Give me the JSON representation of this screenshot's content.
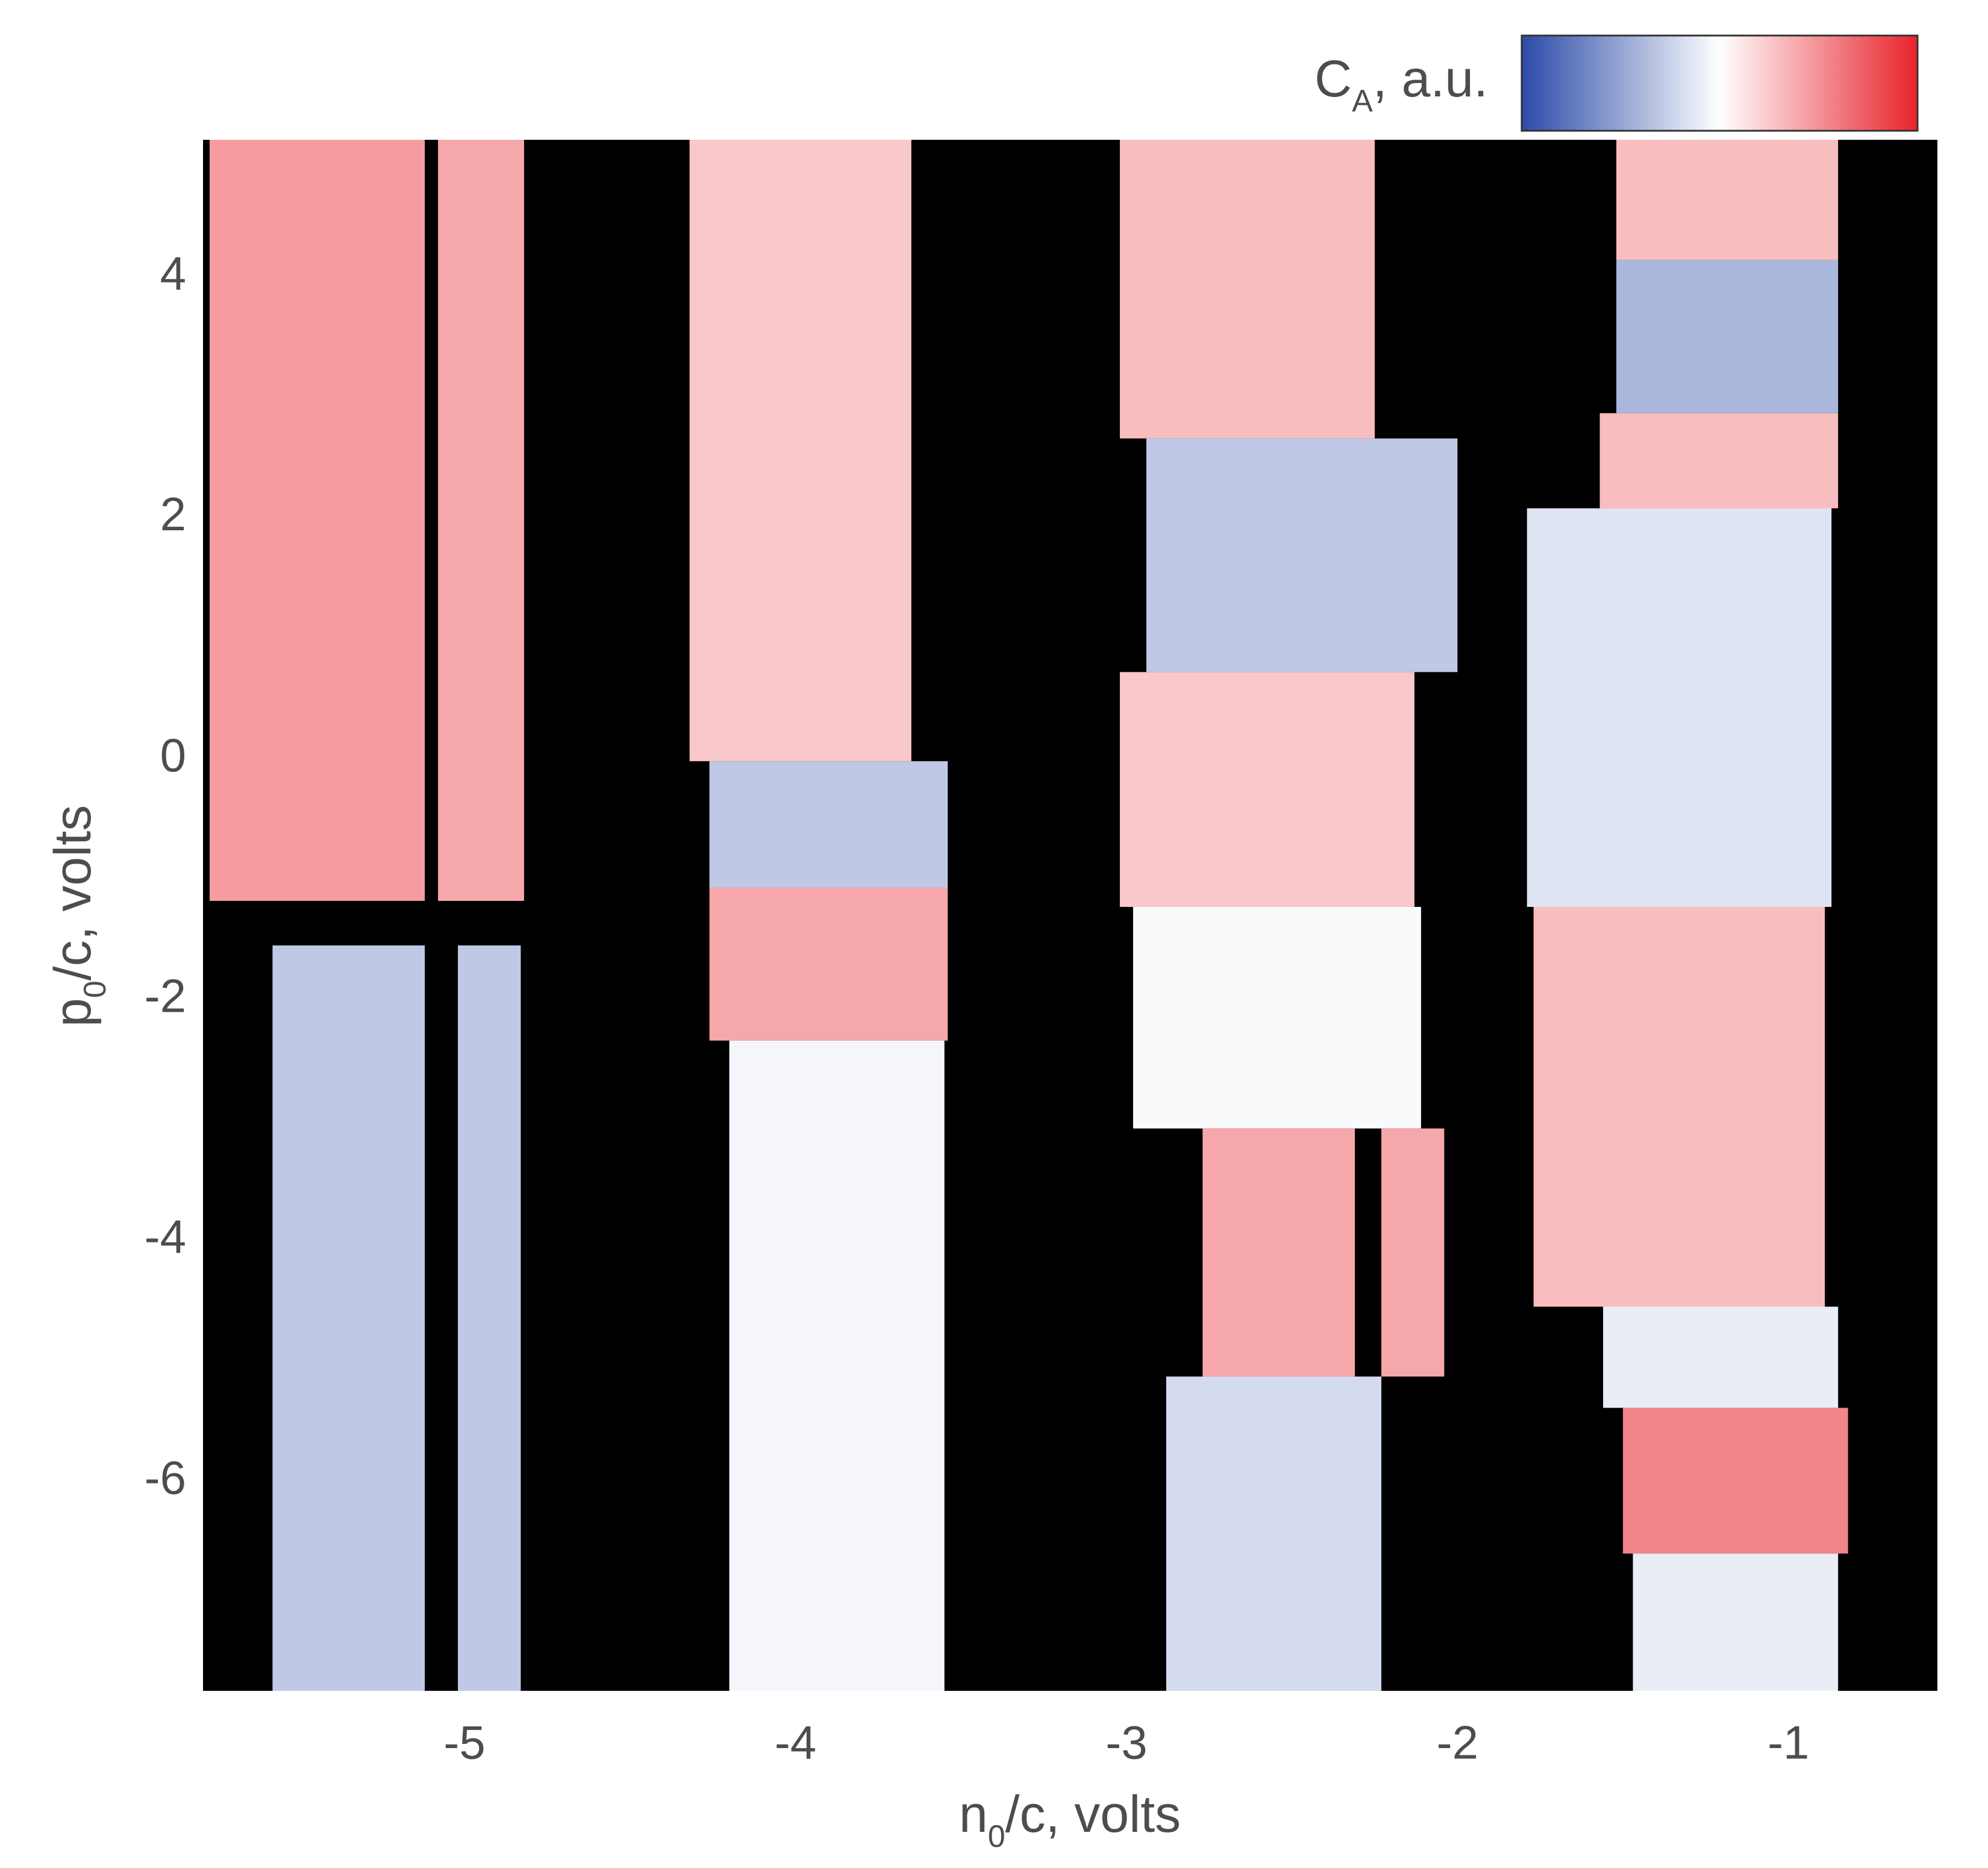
{
  "chart_data": {
    "type": "heatmap",
    "xlabel": [
      "n",
      "0",
      "/c, volts"
    ],
    "ylabel": [
      "p",
      "0",
      "/c, volts"
    ],
    "colorbar_label": [
      "C",
      "A",
      ", a.u."
    ],
    "xlim": [
      -5.79,
      -0.55
    ],
    "ylim": [
      -7.74,
      5.14
    ],
    "xticks": [
      -5,
      -4,
      -3,
      -2,
      -1
    ],
    "yticks": [
      4,
      2,
      0,
      -2,
      -4,
      -6
    ],
    "clim": [
      -1,
      1
    ],
    "colormap": [
      "#2b4ba8",
      "#ffffff",
      "#e8232b"
    ],
    "mask_color": "#000000",
    "regions": [
      {
        "x": [
          -5.77,
          -5.12
        ],
        "y": [
          -1.18,
          5.14
        ],
        "value": 0.45
      },
      {
        "x": [
          -5.58,
          -5.12
        ],
        "y": [
          -7.74,
          -1.55
        ],
        "value": -0.3
      },
      {
        "x": [
          -5.08,
          -4.82
        ],
        "y": [
          -1.18,
          5.14
        ],
        "value": 0.4
      },
      {
        "x": [
          -5.02,
          -4.83
        ],
        "y": [
          -7.74,
          -1.55
        ],
        "value": -0.3
      },
      {
        "x": [
          -4.32,
          -3.65
        ],
        "y": [
          -0.02,
          5.14
        ],
        "value": 0.25
      },
      {
        "x": [
          -4.26,
          -3.54
        ],
        "y": [
          -1.07,
          -0.02
        ],
        "value": -0.3
      },
      {
        "x": [
          -4.26,
          -3.54
        ],
        "y": [
          -2.34,
          -1.07
        ],
        "value": 0.4
      },
      {
        "x": [
          -4.2,
          -3.55
        ],
        "y": [
          -7.74,
          -2.34
        ],
        "value": -0.05
      },
      {
        "x": [
          -3.02,
          -2.25
        ],
        "y": [
          2.66,
          5.14
        ],
        "value": 0.3
      },
      {
        "x": [
          -2.94,
          -2.0
        ],
        "y": [
          0.72,
          2.66
        ],
        "value": -0.3
      },
      {
        "x": [
          -3.02,
          -2.13
        ],
        "y": [
          -1.23,
          0.72
        ],
        "value": 0.25
      },
      {
        "x": [
          -2.98,
          -2.11
        ],
        "y": [
          -3.07,
          -1.23
        ],
        "value": -0.03
      },
      {
        "x": [
          -2.77,
          -2.31
        ],
        "y": [
          -5.13,
          -3.07
        ],
        "value": 0.4
      },
      {
        "x": [
          -2.23,
          -2.04
        ],
        "y": [
          -5.13,
          -3.07
        ],
        "value": 0.4
      },
      {
        "x": [
          -2.88,
          -2.23
        ],
        "y": [
          -7.74,
          -5.13
        ],
        "value": -0.2
      },
      {
        "x": [
          -1.52,
          -0.85
        ],
        "y": [
          4.14,
          5.14
        ],
        "value": 0.3
      },
      {
        "x": [
          -1.52,
          -0.85
        ],
        "y": [
          2.87,
          4.14
        ],
        "value": -0.4
      },
      {
        "x": [
          -1.57,
          -0.85
        ],
        "y": [
          2.08,
          2.87
        ],
        "value": 0.3
      },
      {
        "x": [
          -1.79,
          -0.87
        ],
        "y": [
          -1.23,
          2.08
        ],
        "value": -0.15
      },
      {
        "x": [
          -1.77,
          -0.89
        ],
        "y": [
          -4.55,
          -1.23
        ],
        "value": 0.3
      },
      {
        "x": [
          -1.56,
          -0.85
        ],
        "y": [
          -5.39,
          -4.55
        ],
        "value": -0.1
      },
      {
        "x": [
          -1.5,
          -0.82
        ],
        "y": [
          -6.6,
          -5.39
        ],
        "value": 0.55
      },
      {
        "x": [
          -1.47,
          -0.85
        ],
        "y": [
          -7.74,
          -6.6
        ],
        "value": -0.1
      }
    ]
  }
}
